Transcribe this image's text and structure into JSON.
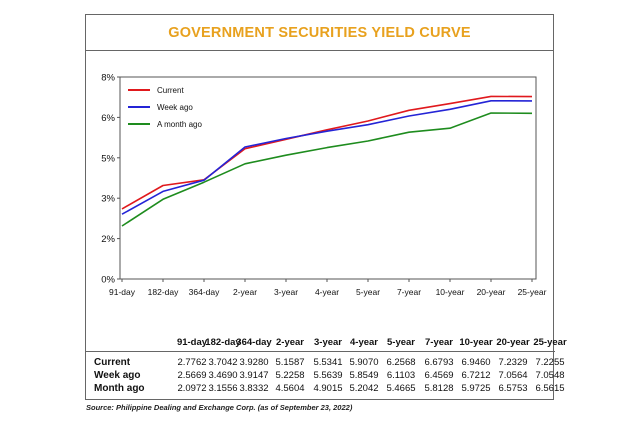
{
  "chart_data": {
    "type": "line",
    "title": "GOVERNMENT SECURITIES YIELD CURVE",
    "categories": [
      "91-day",
      "182-day",
      "364-day",
      "2-year",
      "3-year",
      "4-year",
      "5-year",
      "7-year",
      "10-year",
      "20-year",
      "25-year"
    ],
    "y_ticks": [
      "0%",
      "2%",
      "3%",
      "5%",
      "6%",
      "8%"
    ],
    "ylim": [
      0,
      8
    ],
    "series": [
      {
        "name": "Current",
        "color": "#e0191d",
        "values": [
          2.7762,
          3.7042,
          3.928,
          5.1587,
          5.5341,
          5.907,
          6.2568,
          6.6793,
          6.946,
          7.2329,
          7.2255
        ]
      },
      {
        "name": "Week ago",
        "color": "#2424d6",
        "values": [
          2.5669,
          3.469,
          3.9147,
          5.2258,
          5.5639,
          5.8549,
          6.1103,
          6.4569,
          6.7212,
          7.0564,
          7.0548
        ]
      },
      {
        "name": "A month ago",
        "color": "#1e8c1e",
        "values": [
          2.0972,
          3.1556,
          3.8332,
          4.5604,
          4.9015,
          5.2042,
          5.4665,
          5.8128,
          5.9725,
          6.5753,
          6.5615
        ]
      }
    ],
    "legend_position": "top-left",
    "grid": false
  },
  "table": {
    "headers": [
      "91-day",
      "182-day",
      "364-day",
      "2-year",
      "3-year",
      "4-year",
      "5-year",
      "7-year",
      "10-year",
      "20-year",
      "25-year"
    ],
    "rows": [
      {
        "label": "Current",
        "cells": [
          "2.7762",
          "3.7042",
          "3.9280",
          "5.1587",
          "5.5341",
          "5.9070",
          "6.2568",
          "6.6793",
          "6.9460",
          "7.2329",
          "7.2255"
        ]
      },
      {
        "label": "Week ago",
        "cells": [
          "2.5669",
          "3.4690",
          "3.9147",
          "5.2258",
          "5.5639",
          "5.8549",
          "6.1103",
          "6.4569",
          "6.7212",
          "7.0564",
          "7.0548"
        ]
      },
      {
        "label": "Month ago",
        "cells": [
          "2.0972",
          "3.1556",
          "3.8332",
          "4.5604",
          "4.9015",
          "5.2042",
          "5.4665",
          "5.8128",
          "5.9725",
          "6.5753",
          "6.5615"
        ]
      }
    ]
  },
  "source": "Source: Philippine Dealing and Exchange Corp. (as of September 23, 2022)"
}
